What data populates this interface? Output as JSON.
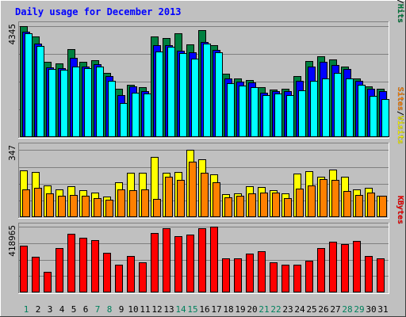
{
  "chart_data": [
    {
      "type": "bar",
      "title": "Daily usage for December 2013",
      "categories": [
        "1",
        "2",
        "3",
        "4",
        "5",
        "6",
        "7",
        "8",
        "9",
        "10",
        "11",
        "12",
        "13",
        "14",
        "15",
        "16",
        "17",
        "18",
        "19",
        "20",
        "21",
        "22",
        "23",
        "24",
        "25",
        "26",
        "27",
        "28",
        "29",
        "30",
        "31"
      ],
      "weekend_days": [
        "1",
        "7",
        "8",
        "14",
        "15",
        "21",
        "22",
        "28",
        "29"
      ],
      "y_tick_label": "4345",
      "ylim": [
        0,
        4345
      ],
      "side_label": [
        "Pages",
        "Files",
        "Hits"
      ],
      "series": [
        {
          "name": "Hits",
          "color": "#008040",
          "values": [
            4345,
            3960,
            2960,
            2900,
            3450,
            2960,
            3030,
            2520,
            1890,
            2050,
            1950,
            3950,
            3880,
            4090,
            3650,
            4190,
            3600,
            2500,
            2300,
            2240,
            1950,
            1870,
            1900,
            2400,
            3000,
            3180,
            3050,
            2770,
            2300,
            1990,
            1900
          ]
        },
        {
          "name": "Files",
          "color": "#0000ff",
          "values": [
            4150,
            3660,
            2750,
            2700,
            3120,
            2770,
            2850,
            2400,
            1650,
            1990,
            1800,
            3600,
            3600,
            3400,
            3320,
            3720,
            3420,
            2290,
            2180,
            2150,
            1750,
            1810,
            1800,
            2200,
            2780,
            2950,
            2820,
            2680,
            2200,
            1900,
            1800
          ]
        },
        {
          "name": "Pages",
          "color": "#00ffff",
          "values": [
            4070,
            3580,
            2680,
            2640,
            2760,
            2700,
            2780,
            2200,
            1330,
            1730,
            1700,
            3370,
            3560,
            3300,
            3070,
            3660,
            3330,
            2120,
            2020,
            1970,
            1650,
            1700,
            1640,
            1850,
            2220,
            2300,
            2520,
            2300,
            2050,
            1620,
            1480
          ]
        }
      ]
    },
    {
      "type": "bar",
      "y_tick_label": "347",
      "ylim": [
        0,
        347
      ],
      "side_label": [
        "Sites",
        "Visits"
      ],
      "series": [
        {
          "name": "Visits",
          "color": "#ffff00",
          "values": [
            240,
            232,
            162,
            143,
            160,
            141,
            129,
            107,
            181,
            230,
            231,
            313,
            228,
            235,
            347,
            299,
            222,
            120,
            123,
            158,
            156,
            140,
            121,
            227,
            237,
            210,
            248,
            208,
            145,
            150,
            112
          ]
        },
        {
          "name": "Sites",
          "color": "#ff8000",
          "values": [
            143,
            151,
            124,
            109,
            116,
            109,
            97,
            89,
            142,
            140,
            142,
            94,
            211,
            193,
            285,
            230,
            179,
            104,
            112,
            123,
            128,
            126,
            98,
            147,
            164,
            198,
            193,
            135,
            116,
            129,
            109
          ]
        }
      ]
    },
    {
      "type": "bar",
      "y_tick_label": "418965",
      "ylim": [
        0,
        418965
      ],
      "side_label": [
        "KBytes"
      ],
      "series": [
        {
          "name": "KBytes",
          "color": "#ff0000",
          "values": [
            298000,
            227000,
            134000,
            284000,
            375000,
            352000,
            334000,
            256000,
            177000,
            234000,
            193000,
            383000,
            412000,
            358000,
            370000,
            412000,
            418965,
            216000,
            216000,
            250000,
            263000,
            194000,
            177000,
            177000,
            202000,
            282000,
            325000,
            311000,
            332000,
            232000,
            217000
          ]
        }
      ]
    }
  ]
}
